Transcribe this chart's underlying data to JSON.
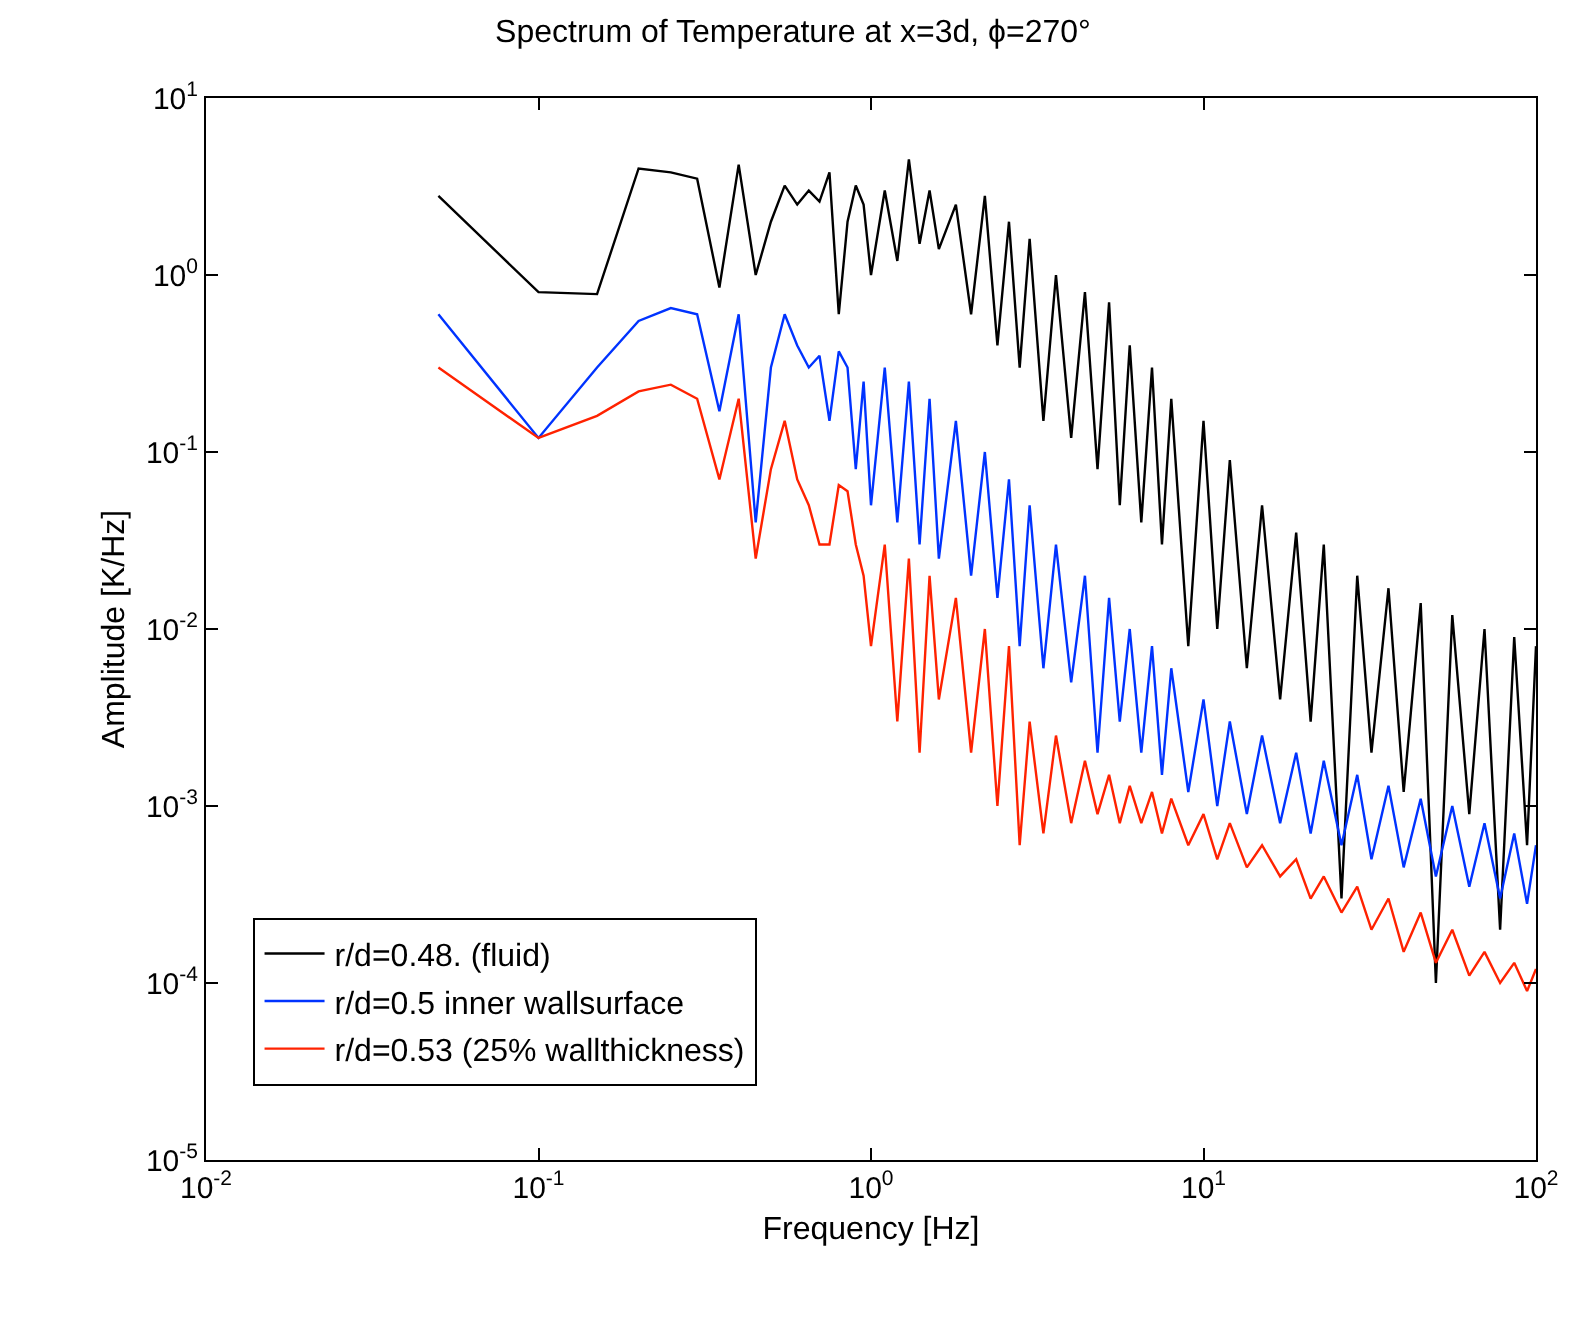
{
  "chart_data": {
    "type": "line",
    "title": "Spectrum of Temperature at x=3d, ϕ=270°",
    "xlabel": "Frequency [Hz]",
    "ylabel": "Amplitude [K/Hz]",
    "log": "xy",
    "legend": "bottom left",
    "marker": "none",
    "line_style": "solid",
    "x": [
      0.05,
      0.1,
      0.15,
      0.2,
      0.25,
      0.3,
      0.35,
      0.4,
      0.45,
      0.5,
      0.55,
      0.6,
      0.65,
      0.7,
      0.75,
      0.8,
      0.85,
      0.9,
      0.95,
      1.0,
      1.1,
      1.2,
      1.3,
      1.4,
      1.5,
      1.6,
      1.8,
      2.0,
      2.2,
      2.4,
      2.6,
      2.8,
      3.0,
      3.3,
      3.6,
      4.0,
      4.4,
      4.8,
      5.2,
      5.6,
      6.0,
      6.5,
      7.0,
      7.5,
      8,
      9,
      10,
      11,
      12,
      13.5,
      15,
      17,
      19,
      21,
      23,
      26,
      29,
      32,
      36,
      40,
      45,
      50,
      56,
      63,
      70,
      78,
      86,
      94,
      100
    ],
    "xlim": [
      0.01,
      100
    ],
    "ylim": [
      1e-05,
      10
    ],
    "xticks": [
      {
        "value": 0.01,
        "label": "10$^{-2}$"
      },
      {
        "value": 0.1,
        "label": "10$^{-1}$"
      },
      {
        "value": 1,
        "label": "10$^{0}$"
      },
      {
        "value": 10,
        "label": "10$^{1}$"
      },
      {
        "value": 100,
        "label": "10$^{2}$"
      }
    ],
    "yticks": [
      {
        "value": 1e-05,
        "label": "10$^{-5}$"
      },
      {
        "value": 0.0001,
        "label": "10$^{-4}$"
      },
      {
        "value": 0.001,
        "label": "10$^{-3}$"
      },
      {
        "value": 0.01,
        "label": "10$^{-2}$"
      },
      {
        "value": 0.1,
        "label": "10$^{-1}$"
      },
      {
        "value": 1,
        "label": "10$^{0}$"
      },
      {
        "value": 10,
        "label": "10$^{1}$"
      }
    ],
    "series": [
      {
        "name": "r/d=0.48. (fluid)",
        "color": "#000000",
        "values": [
          2.8,
          0.8,
          0.78,
          4.0,
          3.8,
          3.5,
          0.85,
          4.2,
          1.0,
          2.0,
          3.2,
          2.5,
          3.0,
          2.6,
          3.8,
          0.6,
          2.0,
          3.2,
          2.5,
          1.0,
          3.0,
          1.2,
          4.5,
          1.5,
          3.0,
          1.4,
          2.5,
          0.6,
          2.8,
          0.4,
          2.0,
          0.3,
          1.6,
          0.15,
          1.0,
          0.12,
          0.8,
          0.08,
          0.7,
          0.05,
          0.4,
          0.04,
          0.3,
          0.03,
          0.2,
          0.008,
          0.15,
          0.01,
          0.09,
          0.006,
          0.05,
          0.004,
          0.035,
          0.003,
          0.03,
          0.0003,
          0.02,
          0.002,
          0.017,
          0.0012,
          0.014,
          0.0001,
          0.012,
          0.0009,
          0.01,
          0.0002,
          0.009,
          0.0006,
          0.008
        ]
      },
      {
        "name": "r/d=0.5 inner wallsurface",
        "color": "#0033ff",
        "values": [
          0.6,
          0.12,
          0.3,
          0.55,
          0.65,
          0.6,
          0.17,
          0.6,
          0.04,
          0.3,
          0.6,
          0.4,
          0.3,
          0.35,
          0.15,
          0.37,
          0.3,
          0.08,
          0.25,
          0.05,
          0.3,
          0.04,
          0.25,
          0.03,
          0.2,
          0.025,
          0.15,
          0.02,
          0.1,
          0.015,
          0.07,
          0.008,
          0.05,
          0.006,
          0.03,
          0.005,
          0.02,
          0.002,
          0.015,
          0.003,
          0.01,
          0.002,
          0.008,
          0.0015,
          0.006,
          0.0012,
          0.004,
          0.001,
          0.003,
          0.0009,
          0.0025,
          0.0008,
          0.002,
          0.0007,
          0.0018,
          0.0006,
          0.0015,
          0.0005,
          0.0013,
          0.00045,
          0.0011,
          0.0004,
          0.001,
          0.00035,
          0.0008,
          0.0003,
          0.0007,
          0.00028,
          0.0006
        ]
      },
      {
        "name": "r/d=0.53 (25% wallthickness)",
        "color": "#ff2200",
        "values": [
          0.3,
          0.12,
          0.16,
          0.22,
          0.24,
          0.2,
          0.07,
          0.2,
          0.025,
          0.08,
          0.15,
          0.07,
          0.05,
          0.03,
          0.03,
          0.065,
          0.06,
          0.03,
          0.02,
          0.008,
          0.03,
          0.003,
          0.025,
          0.002,
          0.02,
          0.004,
          0.015,
          0.002,
          0.01,
          0.001,
          0.008,
          0.0006,
          0.003,
          0.0007,
          0.0025,
          0.0008,
          0.0018,
          0.0009,
          0.0015,
          0.0008,
          0.0013,
          0.0008,
          0.0012,
          0.0007,
          0.0011,
          0.0006,
          0.0009,
          0.0005,
          0.0008,
          0.00045,
          0.0006,
          0.0004,
          0.0005,
          0.0003,
          0.0004,
          0.00025,
          0.00035,
          0.0002,
          0.0003,
          0.00015,
          0.00025,
          0.00013,
          0.0002,
          0.00011,
          0.00015,
          0.0001,
          0.00013,
          9e-05,
          0.00012
        ]
      }
    ]
  }
}
